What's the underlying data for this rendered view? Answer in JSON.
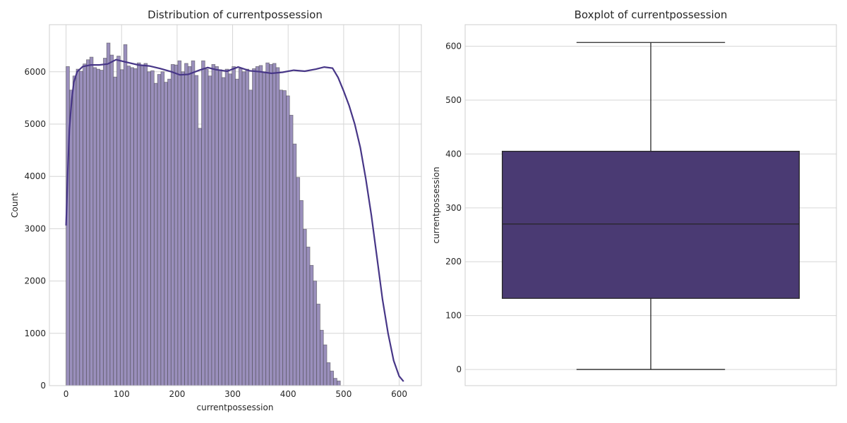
{
  "colors": {
    "bar_fill": "#9a8fbc",
    "kde_line": "#473687",
    "box_fill": "#4a3a73",
    "whisker": "#262626",
    "grid": "#d6d6d6"
  },
  "chart_data": [
    {
      "type": "bar",
      "title": "Distribution of currentpossession",
      "xlabel": "currentpossession",
      "ylabel": "Count",
      "xlim": [
        -30,
        640
      ],
      "ylim": [
        0,
        6900
      ],
      "xticks": [
        0,
        100,
        200,
        300,
        400,
        500,
        600
      ],
      "yticks": [
        0,
        1000,
        2000,
        3000,
        4000,
        5000,
        6000
      ],
      "grid": true,
      "bin_start": 0,
      "bin_width": 6.1,
      "values": [
        6100,
        5650,
        5920,
        6050,
        6010,
        6150,
        6230,
        6280,
        6080,
        6050,
        6030,
        6260,
        6550,
        6320,
        5900,
        6300,
        6040,
        6520,
        6110,
        6080,
        6060,
        6170,
        6130,
        6160,
        6000,
        6020,
        5780,
        5950,
        6000,
        5800,
        5860,
        6140,
        6130,
        6210,
        6000,
        6160,
        6100,
        6210,
        5930,
        4920,
        6210,
        6050,
        5920,
        6140,
        6100,
        6040,
        5890,
        6050,
        5960,
        6100,
        5860,
        6060,
        6000,
        6050,
        5650,
        6060,
        6100,
        6120,
        6000,
        6170,
        6140,
        6160,
        6080,
        5650,
        5640,
        5540,
        5170,
        4620,
        3980,
        3540,
        2990,
        2650,
        2300,
        2000,
        1560,
        1060,
        780,
        440,
        280,
        140,
        90
      ],
      "kde": {
        "x": [
          0,
          3,
          6,
          10,
          14,
          20,
          30,
          45,
          60,
          75,
          90,
          110,
          130,
          150,
          170,
          190,
          205,
          220,
          240,
          255,
          270,
          290,
          310,
          330,
          350,
          370,
          390,
          410,
          430,
          450,
          465,
          480,
          490,
          500,
          510,
          520,
          530,
          540,
          550,
          560,
          570,
          580,
          590,
          600,
          608
        ],
        "y": [
          3060,
          4100,
          4900,
          5450,
          5800,
          6000,
          6100,
          6130,
          6130,
          6150,
          6230,
          6180,
          6130,
          6110,
          6060,
          6000,
          5940,
          5950,
          6030,
          6080,
          6040,
          6010,
          6090,
          6020,
          6000,
          5970,
          5990,
          6030,
          6010,
          6050,
          6090,
          6070,
          5890,
          5630,
          5350,
          5000,
          4550,
          3950,
          3250,
          2450,
          1650,
          1000,
          480,
          180,
          80
        ]
      }
    },
    {
      "type": "box",
      "title": "Boxplot of currentpossession",
      "ylabel": "currentpossession",
      "ylim": [
        -30,
        640
      ],
      "yticks": [
        0,
        100,
        200,
        300,
        400,
        500,
        600
      ],
      "grid": true,
      "min": 0,
      "q1": 132,
      "median": 270,
      "q3": 405,
      "max": 607
    }
  ]
}
